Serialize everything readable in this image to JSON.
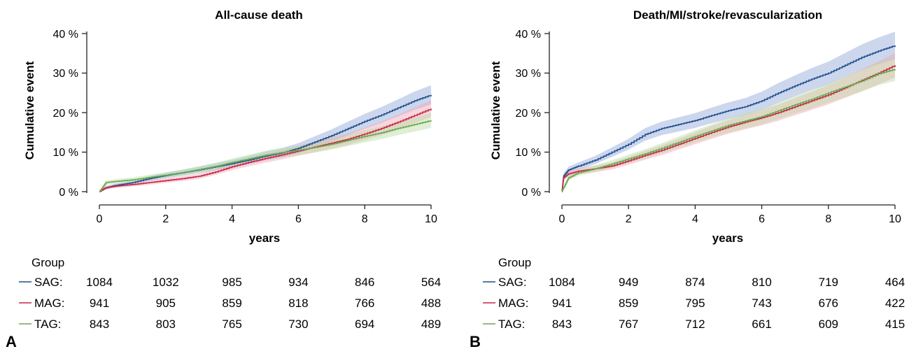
{
  "chart_data": [
    {
      "type": "line",
      "panel_label": "A",
      "title": "All-cause death",
      "xlabel": "years",
      "ylabel": "Cumulative event",
      "xlim": [
        0,
        10
      ],
      "ylim": [
        0,
        40
      ],
      "x_ticks": [
        "0",
        "2",
        "4",
        "6",
        "8",
        "10"
      ],
      "y_ticks": [
        "0 %",
        "10 %",
        "20 %",
        "30 %",
        "40 %"
      ],
      "grid": false,
      "confidence_bands": true,
      "series": [
        {
          "name": "SAG",
          "color": "#1f4e8c",
          "band_color": "#8fa6d9",
          "x": [
            0,
            0.2,
            0.5,
            1,
            1.5,
            2,
            2.5,
            3,
            3.5,
            4,
            4.5,
            5,
            5.5,
            6,
            6.5,
            7,
            7.5,
            8,
            8.5,
            9,
            9.5,
            10
          ],
          "y": [
            0,
            1,
            1.6,
            2.3,
            3.3,
            4.1,
            4.8,
            5.5,
            6.3,
            7.1,
            8,
            9,
            9.8,
            11,
            12.6,
            14.2,
            16,
            17.8,
            19.4,
            21.2,
            23,
            24.5
          ]
        },
        {
          "name": "MAG",
          "color": "#c8254a",
          "band_color": "#f2a4b3",
          "x": [
            0,
            0.2,
            0.5,
            1,
            1.5,
            2,
            2.5,
            3,
            3.5,
            4,
            4.5,
            5,
            5.5,
            6,
            6.5,
            7,
            7.5,
            8,
            8.5,
            9,
            9.5,
            10
          ],
          "y": [
            0,
            1,
            1.4,
            1.8,
            2.3,
            2.8,
            3.3,
            3.9,
            5,
            6.3,
            7.4,
            8.4,
            9.3,
            10.3,
            11.3,
            12.3,
            13.3,
            14.6,
            16,
            17.6,
            19.3,
            21
          ]
        },
        {
          "name": "TAG",
          "color": "#6aa84f",
          "band_color": "#b9dba5",
          "x": [
            0,
            0.2,
            0.5,
            1,
            1.5,
            2,
            2.5,
            3,
            3.5,
            4,
            4.5,
            5,
            5.5,
            6,
            6.5,
            7,
            7.5,
            8,
            8.5,
            9,
            9.5,
            10
          ],
          "y": [
            0,
            2.3,
            2.6,
            3,
            3.6,
            4.2,
            4.8,
            5.6,
            6.4,
            7.4,
            8.3,
            9.2,
            9.9,
            10.5,
            11.2,
            12,
            13,
            14,
            14.9,
            16,
            17,
            18
          ]
        }
      ],
      "risk_table": {
        "header": "Group",
        "times": [
          0,
          2,
          4,
          6,
          8,
          10
        ],
        "rows": [
          {
            "label": "SAG:",
            "counts": [
              "1084",
              "1032",
              "985",
              "934",
              "846",
              "564"
            ]
          },
          {
            "label": "MAG:",
            "counts": [
              "941",
              "905",
              "859",
              "818",
              "766",
              "488"
            ]
          },
          {
            "label": "TAG:",
            "counts": [
              "843",
              "803",
              "765",
              "730",
              "694",
              "489"
            ]
          }
        ]
      }
    },
    {
      "type": "line",
      "panel_label": "B",
      "title": "Death/MI/stroke/revascularization",
      "xlabel": "years",
      "ylabel": "Cumulative event",
      "xlim": [
        0,
        10
      ],
      "ylim": [
        0,
        40
      ],
      "x_ticks": [
        "0",
        "2",
        "4",
        "6",
        "8",
        "10"
      ],
      "y_ticks": [
        "0 %",
        "10 %",
        "20 %",
        "30 %",
        "40 %"
      ],
      "grid": false,
      "confidence_bands": true,
      "series": [
        {
          "name": "SAG",
          "color": "#1f4e8c",
          "band_color": "#8fa6d9",
          "x": [
            0,
            0.05,
            0.2,
            0.5,
            1,
            1.5,
            2,
            2.5,
            3,
            3.5,
            4,
            4.5,
            5,
            5.5,
            6,
            6.5,
            7,
            7.5,
            8,
            8.5,
            9,
            9.5,
            10
          ],
          "y": [
            0,
            4,
            5.5,
            6.5,
            8,
            10,
            12,
            14.5,
            16,
            17,
            18,
            19.3,
            20.5,
            21.5,
            23,
            25,
            26.8,
            28.5,
            30,
            32,
            34,
            35.6,
            37
          ]
        },
        {
          "name": "MAG",
          "color": "#c8254a",
          "band_color": "#f2a4b3",
          "x": [
            0,
            0.05,
            0.2,
            0.5,
            1,
            1.5,
            2,
            2.5,
            3,
            3.5,
            4,
            4.5,
            5,
            5.5,
            6,
            6.5,
            7,
            7.5,
            8,
            8.5,
            9,
            9.5,
            10
          ],
          "y": [
            0,
            3.5,
            4.5,
            5.2,
            5.8,
            6.5,
            7.8,
            9.2,
            10.5,
            12,
            13.5,
            15,
            16.4,
            17.6,
            18.7,
            20,
            21.5,
            23,
            24.5,
            26.3,
            28.2,
            30,
            32
          ]
        },
        {
          "name": "TAG",
          "color": "#6aa84f",
          "band_color": "#b9dba5",
          "x": [
            0,
            0.05,
            0.2,
            0.5,
            1,
            1.5,
            2,
            2.5,
            3,
            3.5,
            4,
            4.5,
            5,
            5.5,
            6,
            6.5,
            7,
            7.5,
            8,
            8.5,
            9,
            9.5,
            10
          ],
          "y": [
            0,
            1,
            3.5,
            4.8,
            5.8,
            7,
            8.3,
            9.6,
            11,
            12.5,
            14,
            15.4,
            16.8,
            17.9,
            19,
            20.5,
            22,
            23.4,
            25,
            26.5,
            28,
            29.8,
            31
          ]
        }
      ],
      "risk_table": {
        "header": "Group",
        "times": [
          0,
          2,
          4,
          6,
          8,
          10
        ],
        "rows": [
          {
            "label": "SAG:",
            "counts": [
              "1084",
              "949",
              "874",
              "810",
              "719",
              "464"
            ]
          },
          {
            "label": "MAG:",
            "counts": [
              "941",
              "859",
              "795",
              "743",
              "676",
              "422"
            ]
          },
          {
            "label": "TAG:",
            "counts": [
              "843",
              "767",
              "712",
              "661",
              "609",
              "415"
            ]
          }
        ]
      }
    }
  ]
}
